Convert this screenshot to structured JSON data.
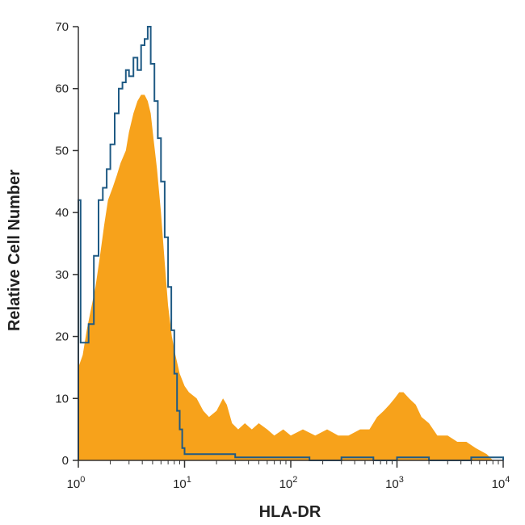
{
  "chart_data": {
    "type": "area",
    "xlabel": "HLA-DR",
    "ylabel": "Relative Cell Number",
    "x_scale": "log",
    "xlim": [
      1,
      10000
    ],
    "ylim": [
      0,
      70
    ],
    "x_ticks": [
      {
        "value": 1,
        "base": "10",
        "exp": "0"
      },
      {
        "value": 10,
        "base": "10",
        "exp": "1"
      },
      {
        "value": 100,
        "base": "10",
        "exp": "2"
      },
      {
        "value": 1000,
        "base": "10",
        "exp": "3"
      },
      {
        "value": 10000,
        "base": "10",
        "exp": "4"
      }
    ],
    "y_ticks": [
      0,
      10,
      20,
      30,
      40,
      50,
      60,
      70
    ],
    "grid": false,
    "legend": "none",
    "series": [
      {
        "style": "filled",
        "color": "#F7A21B",
        "points": [
          [
            1.0,
            15
          ],
          [
            1.1,
            17
          ],
          [
            1.2,
            21
          ],
          [
            1.3,
            24
          ],
          [
            1.45,
            28
          ],
          [
            1.6,
            33
          ],
          [
            1.75,
            38
          ],
          [
            1.9,
            42
          ],
          [
            2.1,
            44
          ],
          [
            2.3,
            46
          ],
          [
            2.5,
            48
          ],
          [
            2.8,
            50
          ],
          [
            3.0,
            53
          ],
          [
            3.3,
            56
          ],
          [
            3.6,
            58
          ],
          [
            3.9,
            59
          ],
          [
            4.2,
            59
          ],
          [
            4.5,
            58
          ],
          [
            4.8,
            56
          ],
          [
            5.1,
            52
          ],
          [
            5.5,
            47
          ],
          [
            6.0,
            40
          ],
          [
            6.5,
            32
          ],
          [
            7.0,
            25
          ],
          [
            7.6,
            20
          ],
          [
            8.2,
            17
          ],
          [
            9.0,
            14
          ],
          [
            10,
            12
          ],
          [
            11,
            11
          ],
          [
            13,
            10
          ],
          [
            15,
            8
          ],
          [
            17,
            7
          ],
          [
            20,
            8
          ],
          [
            23,
            10
          ],
          [
            25,
            9
          ],
          [
            28,
            6
          ],
          [
            32,
            5
          ],
          [
            37,
            6
          ],
          [
            43,
            5
          ],
          [
            50,
            6
          ],
          [
            60,
            5
          ],
          [
            70,
            4
          ],
          [
            85,
            5
          ],
          [
            100,
            4
          ],
          [
            130,
            5
          ],
          [
            170,
            4
          ],
          [
            220,
            5
          ],
          [
            280,
            4
          ],
          [
            350,
            4
          ],
          [
            450,
            5
          ],
          [
            550,
            5
          ],
          [
            650,
            7
          ],
          [
            750,
            8
          ],
          [
            850,
            9
          ],
          [
            950,
            10
          ],
          [
            1050,
            11
          ],
          [
            1150,
            11
          ],
          [
            1300,
            10
          ],
          [
            1500,
            9
          ],
          [
            1700,
            7
          ],
          [
            2000,
            6
          ],
          [
            2400,
            4
          ],
          [
            3000,
            4
          ],
          [
            3700,
            3
          ],
          [
            4500,
            3
          ],
          [
            5500,
            2
          ],
          [
            7000,
            1
          ],
          [
            8000,
            0
          ]
        ]
      },
      {
        "style": "outline",
        "color": "#1F5A84",
        "points": [
          [
            1.0,
            42
          ],
          [
            1.05,
            19
          ],
          [
            1.15,
            19
          ],
          [
            1.25,
            22
          ],
          [
            1.4,
            33
          ],
          [
            1.55,
            42
          ],
          [
            1.7,
            44
          ],
          [
            1.85,
            47
          ],
          [
            2.0,
            51
          ],
          [
            2.2,
            56
          ],
          [
            2.4,
            60
          ],
          [
            2.6,
            61
          ],
          [
            2.8,
            63
          ],
          [
            3.0,
            62
          ],
          [
            3.3,
            65
          ],
          [
            3.6,
            63
          ],
          [
            3.9,
            67
          ],
          [
            4.2,
            68
          ],
          [
            4.5,
            70
          ],
          [
            4.8,
            64
          ],
          [
            5.2,
            58
          ],
          [
            5.6,
            52
          ],
          [
            6.0,
            45
          ],
          [
            6.5,
            36
          ],
          [
            7.0,
            28
          ],
          [
            7.5,
            21
          ],
          [
            8.0,
            14
          ],
          [
            8.5,
            8
          ],
          [
            9.0,
            5
          ],
          [
            9.5,
            2
          ],
          [
            10,
            1
          ],
          [
            13,
            1
          ],
          [
            20,
            1
          ],
          [
            30,
            0.5
          ],
          [
            40,
            0.5
          ],
          [
            70,
            0.5
          ],
          [
            150,
            0
          ],
          [
            300,
            0.5
          ],
          [
            600,
            0
          ],
          [
            1000,
            0.5
          ],
          [
            2000,
            0
          ],
          [
            5000,
            0.5
          ],
          [
            10000,
            0
          ]
        ]
      }
    ]
  }
}
